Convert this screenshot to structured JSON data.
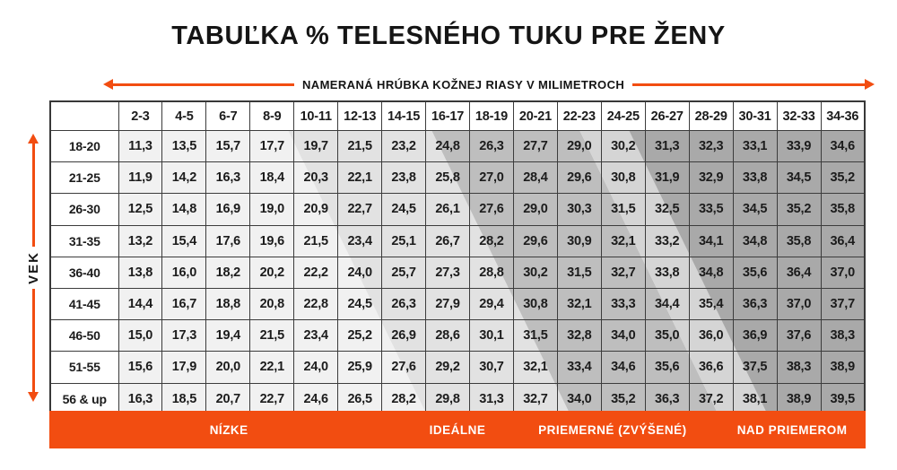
{
  "title": "TABUĽKA % TELESNÉHO TUKU PRE ŽENY",
  "axes": {
    "x_label": "NAMERANÁ HRÚBKA KOŽNEJ RIASY V MILIMETROCH",
    "y_label": "VEK"
  },
  "legend": {
    "items": [
      {
        "label": "NÍZKE"
      },
      {
        "label": "IDEÁLNE"
      },
      {
        "label": "PRIEMERNÉ (ZVÝŠENÉ)"
      },
      {
        "label": "NAD PRIEMEROM"
      }
    ]
  },
  "colors": {
    "accent_orange": "#F24D11",
    "band_low": "#F1F1F1",
    "band_ideal": "#E2E2E2",
    "band_avg": "#BEBEBE",
    "band_sliver": "#D5D5D5",
    "band_above": "#A9A9A9",
    "border": "#3C3C3C",
    "text": "#1C1C1C"
  },
  "chart_data": {
    "type": "table",
    "title": "TABUĽKA % TELESNÉHO TUKU PRE ŽENY",
    "xlabel": "NAMERANÁ HRÚBKA KOŽNEJ RIASY V MILIMETROCH",
    "ylabel": "VEK",
    "columns": [
      "2-3",
      "4-5",
      "6-7",
      "8-9",
      "10-11",
      "12-13",
      "14-15",
      "16-17",
      "18-19",
      "20-21",
      "22-23",
      "24-25",
      "26-27",
      "28-29",
      "30-31",
      "32-33",
      "34-36"
    ],
    "rows": [
      {
        "label": "18-20",
        "values": [
          "11,3",
          "13,5",
          "15,7",
          "17,7",
          "19,7",
          "21,5",
          "23,2",
          "24,8",
          "26,3",
          "27,7",
          "29,0",
          "30,2",
          "31,3",
          "32,3",
          "33,1",
          "33,9",
          "34,6"
        ]
      },
      {
        "label": "21-25",
        "values": [
          "11,9",
          "14,2",
          "16,3",
          "18,4",
          "20,3",
          "22,1",
          "23,8",
          "25,8",
          "27,0",
          "28,4",
          "29,6",
          "30,8",
          "31,9",
          "32,9",
          "33,8",
          "34,5",
          "35,2"
        ]
      },
      {
        "label": "26-30",
        "values": [
          "12,5",
          "14,8",
          "16,9",
          "19,0",
          "20,9",
          "22,7",
          "24,5",
          "26,1",
          "27,6",
          "29,0",
          "30,3",
          "31,5",
          "32,5",
          "33,5",
          "34,5",
          "35,2",
          "35,8"
        ]
      },
      {
        "label": "31-35",
        "values": [
          "13,2",
          "15,4",
          "17,6",
          "19,6",
          "21,5",
          "23,4",
          "25,1",
          "26,7",
          "28,2",
          "29,6",
          "30,9",
          "32,1",
          "33,2",
          "34,1",
          "34,8",
          "35,8",
          "36,4"
        ]
      },
      {
        "label": "36-40",
        "values": [
          "13,8",
          "16,0",
          "18,2",
          "20,2",
          "22,2",
          "24,0",
          "25,7",
          "27,3",
          "28,8",
          "30,2",
          "31,5",
          "32,7",
          "33,8",
          "34,8",
          "35,6",
          "36,4",
          "37,0"
        ]
      },
      {
        "label": "41-45",
        "values": [
          "14,4",
          "16,7",
          "18,8",
          "20,8",
          "22,8",
          "24,5",
          "26,3",
          "27,9",
          "29,4",
          "30,8",
          "32,1",
          "33,3",
          "34,4",
          "35,4",
          "36,3",
          "37,0",
          "37,7"
        ]
      },
      {
        "label": "46-50",
        "values": [
          "15,0",
          "17,3",
          "19,4",
          "21,5",
          "23,4",
          "25,2",
          "26,9",
          "28,6",
          "30,1",
          "31,5",
          "32,8",
          "34,0",
          "35,0",
          "36,0",
          "36,9",
          "37,6",
          "38,3"
        ]
      },
      {
        "label": "51-55",
        "values": [
          "15,6",
          "17,9",
          "20,0",
          "22,1",
          "24,0",
          "25,9",
          "27,6",
          "29,2",
          "30,7",
          "32,1",
          "33,4",
          "34,6",
          "35,6",
          "36,6",
          "37,5",
          "38,3",
          "38,9"
        ]
      },
      {
        "label": "56 & up",
        "values": [
          "16,3",
          "18,5",
          "20,7",
          "22,7",
          "24,6",
          "26,5",
          "28,2",
          "29,8",
          "31,3",
          "32,7",
          "34,0",
          "35,2",
          "36,3",
          "37,2",
          "38,1",
          "38,9",
          "39,5"
        ]
      }
    ],
    "categories_legend": [
      "NÍZKE",
      "IDEÁLNE",
      "PRIEMERNÉ (ZVÝŠENÉ)",
      "NAD PRIEMEROM"
    ]
  }
}
